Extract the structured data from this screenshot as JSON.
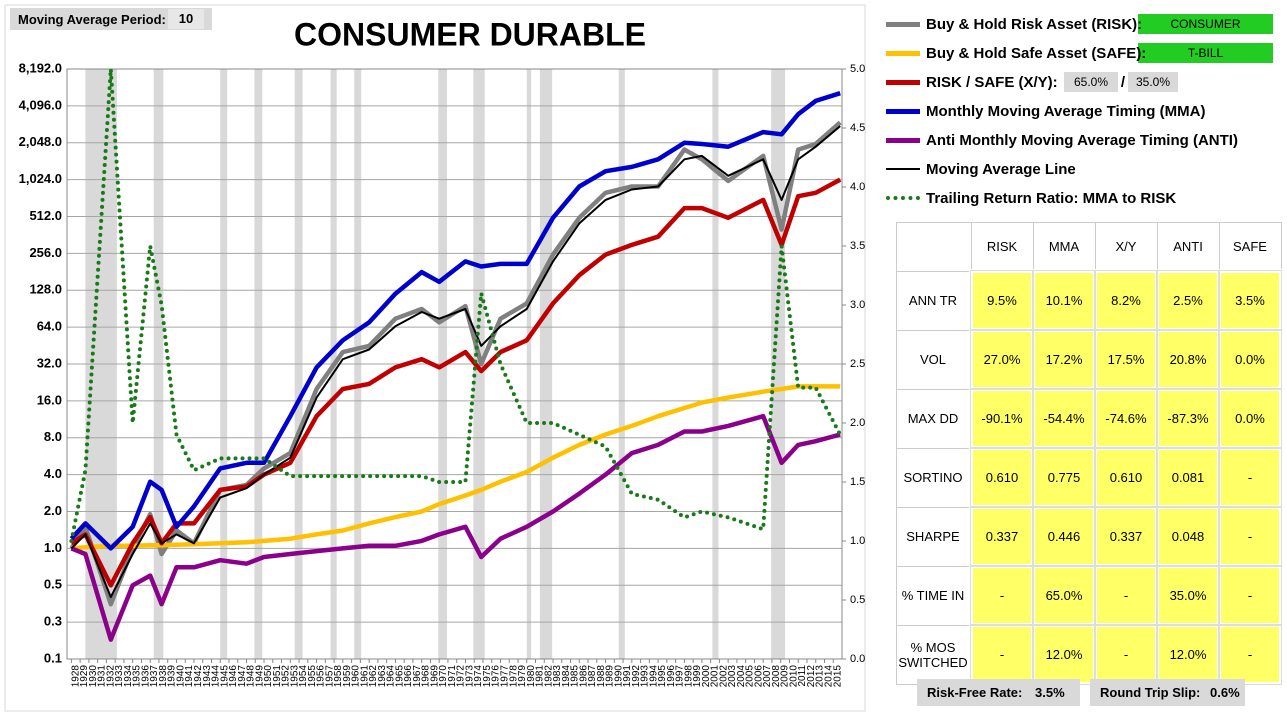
{
  "chart_data": {
    "type": "line",
    "title": "CONSUMER DURABLE",
    "ylog": true,
    "grid": true,
    "xlim": [
      1927.5,
      2016
    ],
    "ylim": [
      0.125,
      8192
    ],
    "y2lim": [
      0,
      5
    ],
    "yticks": [
      {
        "value": 0.125,
        "label": "0.1"
      },
      {
        "value": 0.25,
        "label": "0.3"
      },
      0.5,
      {
        "value": 1,
        "label": "1.0"
      },
      {
        "value": 2,
        "label": "2.0"
      },
      {
        "value": 4,
        "label": "4.0"
      },
      {
        "value": 8,
        "label": "8.0"
      },
      {
        "value": 16,
        "label": "16.0"
      },
      {
        "value": 32,
        "label": "32.0"
      },
      {
        "value": 64,
        "label": "64.0"
      },
      {
        "value": 128,
        "label": "128.0"
      },
      {
        "value": 256,
        "label": "256.0"
      },
      {
        "value": 512,
        "label": "512.0"
      },
      {
        "value": 1024,
        "label": "1,024.0"
      },
      {
        "value": 2048,
        "label": "2,048.0"
      },
      {
        "value": 4096,
        "label": "4,096.0"
      },
      {
        "value": 8192,
        "label": "8,192.0"
      }
    ],
    "y2ticks": [
      {
        "value": 0,
        "label": "0.0"
      },
      0.5,
      {
        "value": 1,
        "label": "1.0"
      },
      1.5,
      {
        "value": 2,
        "label": "2.0"
      },
      2.5,
      {
        "value": 3,
        "label": "3.0"
      },
      3.5,
      {
        "value": 4,
        "label": "4.0"
      },
      4.5,
      {
        "value": 5,
        "label": "5.0"
      }
    ],
    "xticks": [
      1928,
      1929,
      1930,
      1931,
      1932,
      1933,
      1934,
      1935,
      1936,
      1937,
      1938,
      1939,
      1940,
      1941,
      1942,
      1943,
      1944,
      1945,
      1946,
      1947,
      1948,
      1949,
      1950,
      1951,
      1952,
      1953,
      1954,
      1955,
      1956,
      1957,
      1958,
      1959,
      1960,
      1961,
      1962,
      1963,
      1964,
      1965,
      1966,
      1967,
      1968,
      1969,
      1970,
      1971,
      1972,
      1973,
      1974,
      1975,
      1976,
      1977,
      1978,
      1979,
      1980,
      1981,
      1982,
      1983,
      1984,
      1985,
      1986,
      1987,
      1988,
      1989,
      1990,
      1991,
      1992,
      1993,
      1994,
      1995,
      1996,
      1997,
      1998,
      1999,
      2000,
      2001,
      2002,
      2003,
      2004,
      2005,
      2006,
      2007,
      2008,
      2009,
      2010,
      2011,
      2012,
      2013,
      2014,
      2015
    ],
    "recessions": [
      [
        1929.6,
        1933.2
      ],
      [
        1937.4,
        1938.5
      ],
      [
        1945,
        1945.8
      ],
      [
        1948.9,
        1949.8
      ],
      [
        1953.5,
        1954.4
      ],
      [
        1957.6,
        1958.3
      ],
      [
        1960.3,
        1961.1
      ],
      [
        1969.9,
        1970.9
      ],
      [
        1973.9,
        1975.2
      ],
      [
        1980,
        1980.5
      ],
      [
        1981.5,
        1982.9
      ],
      [
        1990.5,
        1991.2
      ],
      [
        2001.2,
        2001.9
      ],
      [
        2007.9,
        2009.5
      ]
    ],
    "recession_color": "#d9d9d9",
    "x": [
      1928,
      1929.6,
      1932.5,
      1935,
      1937,
      1938.3,
      1940,
      1942,
      1945,
      1948,
      1950,
      1953,
      1956,
      1959,
      1962,
      1965,
      1968,
      1970,
      1973,
      1974.8,
      1977,
      1980,
      1983,
      1986,
      1989,
      1992,
      1995,
      1998,
      2000,
      2003,
      2007,
      2009.1,
      2011,
      2013,
      2015.8
    ],
    "series": [
      {
        "name": "Buy & Hold Risk Asset (RISK):",
        "color": "#808080",
        "style": "solid",
        "values": [
          1.0,
          1.5,
          0.35,
          1.0,
          1.9,
          0.9,
          1.4,
          1.1,
          3.0,
          3.3,
          4.5,
          6,
          20,
          40,
          45,
          75,
          90,
          70,
          95,
          32,
          75,
          100,
          250,
          500,
          800,
          900,
          900,
          1800,
          1500,
          1000,
          1600,
          400,
          1800,
          2000,
          3000
        ]
      },
      {
        "name": "Buy & Hold Safe Asset (SAFE):",
        "color": "#ffc000",
        "style": "solid",
        "values": [
          1.0,
          1.02,
          1.05,
          1.05,
          1.06,
          1.06,
          1.07,
          1.08,
          1.1,
          1.12,
          1.15,
          1.2,
          1.3,
          1.4,
          1.6,
          1.8,
          2.0,
          2.3,
          2.7,
          3.0,
          3.5,
          4.2,
          5.5,
          7,
          8.5,
          10,
          12,
          14,
          15.5,
          17,
          19,
          20,
          21,
          21,
          21
        ]
      },
      {
        "name": "RISK / SAFE (X/Y):",
        "color": "#c00000",
        "style": "solid",
        "values": [
          1.1,
          1.3,
          0.5,
          1.1,
          1.8,
          1.1,
          1.6,
          1.6,
          3.0,
          3.2,
          4,
          5,
          12,
          20,
          22,
          30,
          35,
          30,
          40,
          28,
          40,
          50,
          100,
          170,
          250,
          300,
          350,
          600,
          600,
          500,
          700,
          300,
          750,
          800,
          1024
        ]
      },
      {
        "name": "Monthly Moving Average Timing (MMA)",
        "color": "#0000cc",
        "style": "solid",
        "values": [
          1.2,
          1.6,
          1.0,
          1.5,
          3.5,
          3.0,
          1.5,
          2.2,
          4.5,
          5,
          5,
          12,
          30,
          50,
          70,
          120,
          180,
          150,
          220,
          200,
          210,
          210,
          500,
          900,
          1200,
          1300,
          1500,
          2048,
          2000,
          1900,
          2500,
          2400,
          3500,
          4500,
          5200
        ]
      },
      {
        "name": "Anti Monthly Moving Average Timing (ANTI)",
        "color": "#8b008b",
        "style": "solid",
        "values": [
          1.0,
          0.9,
          0.18,
          0.5,
          0.6,
          0.35,
          0.7,
          0.7,
          0.8,
          0.75,
          0.85,
          0.9,
          0.95,
          1.0,
          1.05,
          1.05,
          1.15,
          1.3,
          1.5,
          0.85,
          1.2,
          1.5,
          2.0,
          2.8,
          4,
          6,
          7,
          9,
          9,
          10,
          12,
          5,
          7,
          7.5,
          8.5
        ]
      },
      {
        "name": "Moving Average Line",
        "color": "#000000",
        "style": "thin",
        "values": [
          1.0,
          1.3,
          0.4,
          0.9,
          1.6,
          1.1,
          1.3,
          1.1,
          2.6,
          3.1,
          4.0,
          5.5,
          17,
          35,
          42,
          65,
          85,
          75,
          90,
          45,
          65,
          90,
          220,
          450,
          700,
          850,
          900,
          1500,
          1600,
          1100,
          1500,
          700,
          1500,
          1900,
          2800
        ]
      },
      {
        "name": "Trailing Return Ratio: MMA to RISK",
        "color": "#1a7a1a",
        "style": "dotted",
        "axis": "y2",
        "values": [
          1.0,
          1.6,
          5.0,
          2.0,
          3.5,
          3.0,
          1.9,
          1.6,
          1.7,
          1.7,
          1.7,
          1.55,
          1.55,
          1.55,
          1.55,
          1.55,
          1.55,
          1.5,
          1.5,
          3.1,
          2.5,
          2.0,
          2.0,
          1.9,
          1.8,
          1.4,
          1.35,
          1.2,
          1.25,
          1.2,
          1.1,
          3.5,
          2.3,
          2.3,
          1.9
        ]
      }
    ]
  },
  "settings": {
    "ma_label": "Moving Average Period:",
    "ma_value": "10"
  },
  "controls": {
    "risk_asset": "CONSUMER",
    "safe_asset": "T-BILL",
    "risk_weight": "65.0%",
    "slash": "/",
    "safe_weight": "35.0%"
  },
  "table": {
    "columns": [
      "RISK",
      "MMA",
      "X/Y",
      "ANTI",
      "SAFE"
    ],
    "rows": [
      {
        "label": "ANN TR",
        "cells": [
          "9.5%",
          "10.1%",
          "8.2%",
          "2.5%",
          "3.5%"
        ]
      },
      {
        "label": "VOL",
        "cells": [
          "27.0%",
          "17.2%",
          "17.5%",
          "20.8%",
          "0.0%"
        ]
      },
      {
        "label": "MAX DD",
        "cells": [
          "-90.1%",
          "-54.4%",
          "-74.6%",
          "-87.3%",
          "0.0%"
        ]
      },
      {
        "label": "SORTINO",
        "cells": [
          "0.610",
          "0.775",
          "0.610",
          "0.081",
          "-"
        ]
      },
      {
        "label": "SHARPE",
        "cells": [
          "0.337",
          "0.446",
          "0.337",
          "0.048",
          "-"
        ]
      },
      {
        "label": "% TIME IN",
        "cells": [
          "-",
          "65.0%",
          "-",
          "35.0%",
          "-"
        ]
      },
      {
        "label": "% MOS SWITCHED",
        "cells": [
          "-",
          "12.0%",
          "-",
          "12.0%",
          "-"
        ]
      }
    ]
  },
  "footer": {
    "rf_label": "Risk-Free Rate:",
    "rf_value": "3.5%",
    "slip_label": "Round Trip Slip:",
    "slip_value": "0.6%"
  }
}
